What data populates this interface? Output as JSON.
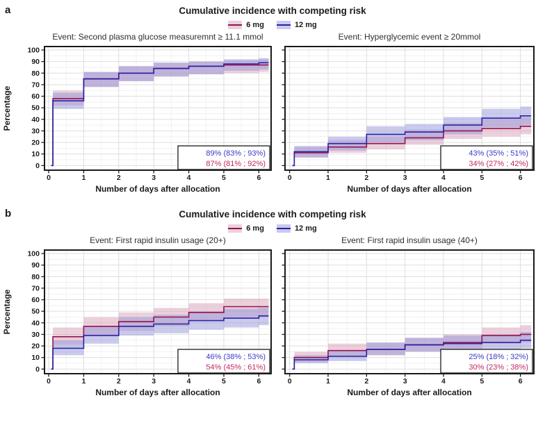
{
  "figure": {
    "sections": [
      {
        "label": "a",
        "title": "Cumulative incidence with competing risk"
      },
      {
        "label": "b",
        "title": "Cumulative incidence with competing risk"
      }
    ],
    "legend": {
      "items": [
        {
          "label": "6 mg",
          "color_key": "red"
        },
        {
          "label": "12 mg",
          "color_key": "blue"
        }
      ]
    }
  },
  "colors": {
    "red_line": "#96134E",
    "blue_line": "#2B21A5",
    "red_band": "#D7A1B9",
    "blue_band": "#9395D9",
    "red_swatch": "#EBD0DC",
    "blue_swatch": "#C9CAEC",
    "annotation_blue": "#3939C8",
    "annotation_red": "#C22863",
    "frame": "#1A1A1A",
    "grid_major": "#DEDEDE",
    "grid_minor": "#F1F1F1"
  },
  "axes": {
    "x_label": "Number of days after allocation",
    "y_label": "Percentage",
    "x_ticks": [
      0,
      1,
      2,
      3,
      4,
      5,
      6
    ],
    "y_ticks": [
      0,
      10,
      20,
      30,
      40,
      50,
      60,
      70,
      80,
      90,
      100
    ],
    "xlim": [
      0,
      6.3
    ],
    "ylim": [
      0,
      100
    ],
    "grid": true
  },
  "chart_data": [
    {
      "type": "line",
      "subtype": "step-cumulative-incidence",
      "section": "a",
      "position": "left",
      "title": "Event: Second plasma glucose measuremnt ≥ 11.1 mmol",
      "show_y_labels": true,
      "series": [
        {
          "name": "6 mg",
          "color_key": "red",
          "start": [
            0.07,
            0
          ],
          "end_x": 6.28,
          "steps": [
            [
              0.12,
              58,
              52,
              65
            ],
            [
              1,
              75,
              68,
              81
            ],
            [
              2,
              80,
              73,
              86
            ],
            [
              3,
              84,
              77,
              89
            ],
            [
              4,
              86,
              79,
              90
            ],
            [
              5,
              87,
              80,
              91
            ],
            [
              6,
              87,
              81,
              92
            ]
          ]
        },
        {
          "name": "12 mg",
          "color_key": "blue",
          "start": [
            0.07,
            0
          ],
          "end_x": 6.28,
          "steps": [
            [
              0.12,
              56,
              49,
              63
            ],
            [
              1,
              75,
              68,
              81
            ],
            [
              2,
              80,
              73,
              86
            ],
            [
              3,
              84,
              77,
              89
            ],
            [
              4,
              86,
              79,
              90
            ],
            [
              5,
              88,
              82,
              92
            ],
            [
              6,
              89,
              83,
              93
            ]
          ]
        }
      ],
      "annotation": [
        {
          "text": "89% (83% ; 93%)",
          "color_key": "blue"
        },
        {
          "text": "87% (81% ; 92%)",
          "color_key": "red"
        }
      ]
    },
    {
      "type": "line",
      "subtype": "step-cumulative-incidence",
      "section": "a",
      "position": "right",
      "title": "Event: Hyperglycemic event ≥ 20mmol",
      "show_y_labels": false,
      "series": [
        {
          "name": "6 mg",
          "color_key": "red",
          "start": [
            0.07,
            0
          ],
          "end_x": 6.28,
          "steps": [
            [
              0.12,
              11,
              7,
              16
            ],
            [
              1,
              16,
              11,
              22
            ],
            [
              2,
              19,
              14,
              25
            ],
            [
              3,
              24,
              18,
              31
            ],
            [
              4,
              30,
              23,
              37
            ],
            [
              5,
              32,
              25,
              40
            ],
            [
              6,
              34,
              27,
              42
            ]
          ]
        },
        {
          "name": "12 mg",
          "color_key": "blue",
          "start": [
            0.07,
            0
          ],
          "end_x": 6.28,
          "steps": [
            [
              0.12,
              12,
              7,
              17
            ],
            [
              1,
              19,
              13,
              25
            ],
            [
              2,
              27,
              20,
              34
            ],
            [
              3,
              29,
              22,
              36
            ],
            [
              4,
              35,
              27,
              42
            ],
            [
              5,
              41,
              33,
              49
            ],
            [
              6,
              43,
              35,
              51
            ]
          ]
        }
      ],
      "annotation": [
        {
          "text": "43% (35% ; 51%)",
          "color_key": "blue"
        },
        {
          "text": "34% (27% ; 42%)",
          "color_key": "red"
        }
      ]
    },
    {
      "type": "line",
      "subtype": "step-cumulative-incidence",
      "section": "b",
      "position": "left",
      "title": "Event: First rapid insulin usage (20+)",
      "show_y_labels": true,
      "series": [
        {
          "name": "6 mg",
          "color_key": "red",
          "start": [
            0.07,
            0
          ],
          "end_x": 6.28,
          "steps": [
            [
              0.12,
              28,
              21,
              36
            ],
            [
              1,
              37,
              29,
              45
            ],
            [
              2,
              41,
              33,
              49
            ],
            [
              3,
              45,
              37,
              53
            ],
            [
              4,
              49,
              41,
              57
            ],
            [
              5,
              54,
              45,
              61
            ],
            [
              6,
              54,
              45,
              61
            ]
          ]
        },
        {
          "name": "12 mg",
          "color_key": "blue",
          "start": [
            0.07,
            0
          ],
          "end_x": 6.28,
          "steps": [
            [
              0.12,
              18,
              12,
              25
            ],
            [
              1,
              29,
              22,
              37
            ],
            [
              2,
              37,
              29,
              45
            ],
            [
              3,
              39,
              31,
              47
            ],
            [
              4,
              42,
              34,
              50
            ],
            [
              5,
              44,
              36,
              52
            ],
            [
              6,
              46,
              38,
              53
            ]
          ]
        }
      ],
      "annotation": [
        {
          "text": "46% (38% ; 53%)",
          "color_key": "blue"
        },
        {
          "text": "54% (45% ; 61%)",
          "color_key": "red"
        }
      ]
    },
    {
      "type": "line",
      "subtype": "step-cumulative-incidence",
      "section": "b",
      "position": "right",
      "title": "Event: First rapid insulin usage (40+)",
      "show_y_labels": false,
      "series": [
        {
          "name": "6 mg",
          "color_key": "red",
          "start": [
            0.07,
            0
          ],
          "end_x": 6.28,
          "steps": [
            [
              0.12,
              10,
              6,
              15
            ],
            [
              1,
              16,
              11,
              22
            ],
            [
              2,
              17,
              12,
              23
            ],
            [
              3,
              21,
              15,
              27
            ],
            [
              4,
              23,
              17,
              30
            ],
            [
              5,
              29,
              22,
              36
            ],
            [
              6,
              30,
              23,
              38
            ]
          ]
        },
        {
          "name": "12 mg",
          "color_key": "blue",
          "start": [
            0.07,
            0
          ],
          "end_x": 6.28,
          "steps": [
            [
              0.12,
              8,
              5,
              12
            ],
            [
              1,
              11,
              7,
              16
            ],
            [
              2,
              17,
              12,
              23
            ],
            [
              3,
              21,
              15,
              27
            ],
            [
              4,
              22,
              16,
              29
            ],
            [
              5,
              23,
              17,
              30
            ],
            [
              6,
              25,
              18,
              32
            ]
          ]
        }
      ],
      "annotation": [
        {
          "text": "25% (18% ; 32%)",
          "color_key": "blue"
        },
        {
          "text": "30% (23% ; 38%)",
          "color_key": "red"
        }
      ]
    }
  ]
}
